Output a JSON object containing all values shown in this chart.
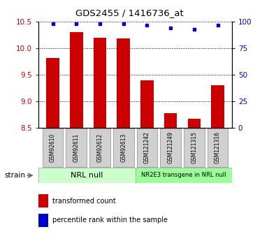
{
  "title": "GDS2455 / 1416736_at",
  "samples": [
    "GSM92610",
    "GSM92611",
    "GSM92612",
    "GSM92613",
    "GSM121242",
    "GSM121249",
    "GSM121315",
    "GSM121316"
  ],
  "bar_values": [
    9.82,
    10.3,
    10.2,
    10.18,
    9.4,
    8.77,
    8.67,
    9.3
  ],
  "dot_values": [
    98,
    98,
    98,
    98,
    97,
    94,
    93,
    97
  ],
  "ylim_left": [
    8.5,
    10.5
  ],
  "ylim_right": [
    0,
    100
  ],
  "yticks_left": [
    8.5,
    9.0,
    9.5,
    10.0,
    10.5
  ],
  "yticks_right": [
    0,
    25,
    50,
    75,
    100
  ],
  "bar_color": "#cc0000",
  "dot_color": "#0000cc",
  "group1_label": "NRL null",
  "group2_label": "NR2E3 transgene in NRL null",
  "group1_color": "#ccffcc",
  "group2_color": "#99ff99",
  "strain_label": "strain",
  "legend_bar": "transformed count",
  "legend_dot": "percentile rank within the sample",
  "background_color": "#ffffff"
}
